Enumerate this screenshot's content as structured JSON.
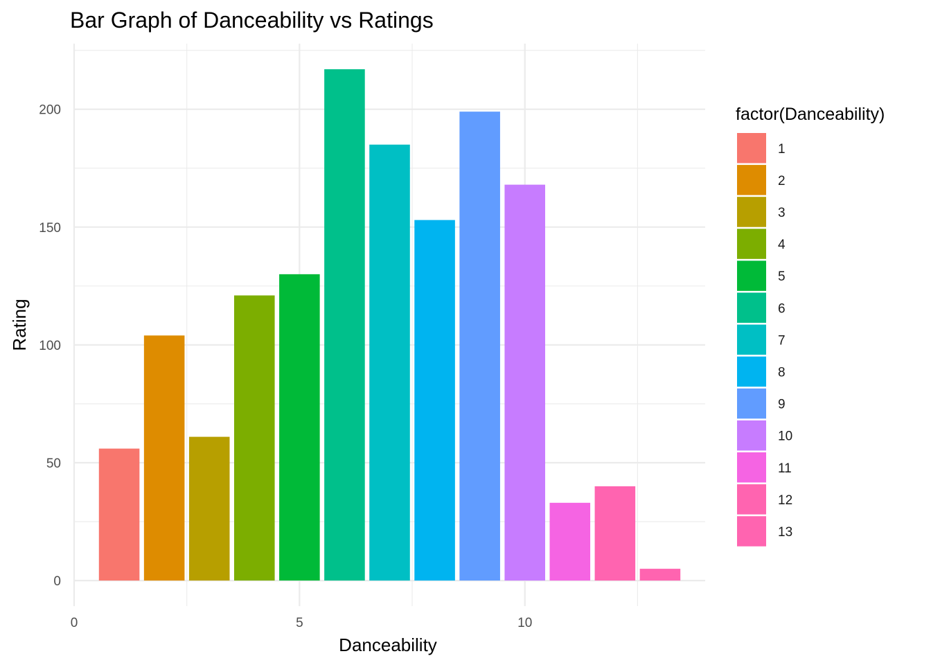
{
  "chart_data": {
    "type": "bar",
    "title": "Bar Graph of Danceability vs Ratings",
    "xlabel": "Danceability",
    "ylabel": "Rating",
    "x": [
      1,
      2,
      3,
      4,
      5,
      6,
      7,
      8,
      9,
      10,
      11,
      12,
      13
    ],
    "values": [
      56,
      104,
      61,
      121,
      130,
      217,
      185,
      153,
      199,
      168,
      33,
      40,
      5
    ],
    "colors": [
      "#F8766D",
      "#DE8C00",
      "#B79F00",
      "#7CAE00",
      "#00BA38",
      "#00C08B",
      "#00BFC4",
      "#00B4F0",
      "#619CFF",
      "#C77CFF",
      "#F564E3",
      "#FF64B0",
      "#FF64B0"
    ],
    "xlim": [
      0,
      14
    ],
    "ylim": [
      -10.85,
      227.85
    ],
    "x_ticks": [
      "0",
      "5",
      "10"
    ],
    "x_tick_values": [
      0,
      5,
      10
    ],
    "y_ticks": [
      "0",
      "50",
      "100",
      "150",
      "200"
    ],
    "y_tick_values": [
      0,
      50,
      100,
      150,
      200
    ],
    "grid": true,
    "legend": {
      "title": "factor(Danceability)",
      "position": "right",
      "labels": [
        "1",
        "2",
        "3",
        "4",
        "5",
        "6",
        "7",
        "8",
        "9",
        "10",
        "11",
        "12",
        "13"
      ]
    }
  }
}
